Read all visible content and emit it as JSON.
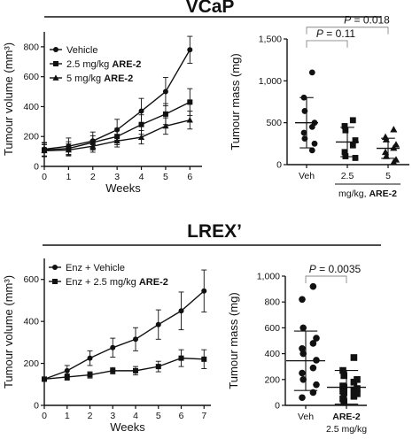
{
  "panels": {
    "vcap": {
      "title": "VCaP"
    },
    "lrex": {
      "title": "LREX’"
    }
  },
  "colors": {
    "ink": "#111111",
    "background": "#ffffff"
  },
  "chart_data": [
    {
      "id": "vcap_volume",
      "type": "line",
      "xlabel": "Weeks",
      "ylabel": "Tumour volume (mm³)",
      "xlim": [
        0,
        6.5
      ],
      "ylim": [
        0,
        900
      ],
      "xticks": [
        0,
        1,
        2,
        3,
        4,
        5,
        6
      ],
      "yticks": [
        0,
        200,
        400,
        600,
        800
      ],
      "legend": "top-left",
      "x": [
        0,
        1,
        2,
        3,
        4,
        5,
        6
      ],
      "series": [
        {
          "name": "Vehicle",
          "name_bold": "",
          "marker": "circle",
          "values": [
            115,
            135,
            170,
            245,
            370,
            500,
            780
          ],
          "errors": [
            45,
            55,
            60,
            70,
            85,
            95,
            90
          ]
        },
        {
          "name": "2.5 mg/kg ",
          "name_bold": "ARE-2",
          "marker": "square",
          "values": [
            110,
            120,
            160,
            200,
            280,
            350,
            430
          ],
          "errors": [
            45,
            45,
            45,
            55,
            65,
            70,
            90
          ]
        },
        {
          "name": "5 mg/kg ",
          "name_bold": "ARE-2",
          "marker": "triangle",
          "values": [
            105,
            110,
            135,
            170,
            195,
            270,
            310
          ],
          "errors": [
            40,
            40,
            40,
            40,
            45,
            55,
            60
          ]
        }
      ]
    },
    {
      "id": "vcap_mass",
      "type": "scatter",
      "ylabel": "Tumour mass (mg)",
      "ylim": [
        0,
        1500
      ],
      "yticks": [
        0,
        500,
        1000,
        1500
      ],
      "ytick_labels": [
        "0",
        "500",
        "1,000",
        "1,500"
      ],
      "categories": [
        "Veh",
        "2.5",
        "5"
      ],
      "category_bold": [
        false,
        false,
        false
      ],
      "group_caption": {
        "text": "mg/kg, ",
        "bold": "ARE-2"
      },
      "groups": [
        {
          "marker": "circle",
          "mean": 500,
          "sd": 300,
          "values": [
            1100,
            800,
            640,
            500,
            450,
            380,
            310,
            250,
            170
          ]
        },
        {
          "marker": "square",
          "mean": 270,
          "sd": 175,
          "values": [
            530,
            460,
            410,
            290,
            230,
            150,
            100,
            80
          ]
        },
        {
          "marker": "triangle",
          "mean": 195,
          "sd": 120,
          "values": [
            420,
            330,
            300,
            240,
            200,
            150,
            100,
            60,
            30
          ]
        }
      ],
      "annotations": [
        {
          "label": "P",
          "value": " = 0.11",
          "from": 0,
          "to": 1,
          "level": 1480
        },
        {
          "label": "P",
          "value": " = 0.018",
          "from": 0,
          "to": 2,
          "level": 1640
        }
      ]
    },
    {
      "id": "lrex_volume",
      "type": "line",
      "xlabel": "Weeks",
      "ylabel": "Tumour volume (mm³)",
      "xlim": [
        0,
        7.3
      ],
      "ylim": [
        0,
        700
      ],
      "xticks": [
        0,
        1,
        2,
        3,
        4,
        5,
        6,
        7
      ],
      "yticks": [
        0,
        200,
        400,
        600
      ],
      "legend": "top-left",
      "x": [
        0,
        1,
        2,
        3,
        4,
        5,
        6,
        7
      ],
      "series": [
        {
          "name": "Enz + Vehicle",
          "name_bold": "",
          "marker": "circle",
          "values": [
            125,
            165,
            225,
            275,
            315,
            385,
            450,
            545
          ],
          "errors": [
            10,
            25,
            35,
            45,
            55,
            70,
            90,
            100
          ]
        },
        {
          "name": "Enz + 2.5 mg/kg ",
          "name_bold": "ARE-2",
          "marker": "square",
          "values": [
            125,
            135,
            145,
            165,
            165,
            185,
            225,
            220
          ],
          "errors": [
            10,
            15,
            15,
            15,
            20,
            25,
            40,
            45
          ]
        }
      ]
    },
    {
      "id": "lrex_mass",
      "type": "scatter",
      "ylabel": "Tumour mass (mg)",
      "ylim": [
        0,
        1000
      ],
      "yticks": [
        0,
        200,
        400,
        600,
        800,
        1000
      ],
      "ytick_labels": [
        "0",
        "200",
        "400",
        "600",
        "800",
        "1,000"
      ],
      "categories": [
        "Veh",
        "ARE-2"
      ],
      "category_bold": [
        false,
        true
      ],
      "category_sub": [
        "",
        "2.5 mg/kg"
      ],
      "groups": [
        {
          "marker": "circle",
          "mean": 345,
          "sd": 230,
          "values": [
            920,
            820,
            600,
            520,
            480,
            440,
            400,
            350,
            290,
            250,
            200,
            160,
            100,
            60
          ]
        },
        {
          "marker": "square",
          "mean": 140,
          "sd": 130,
          "values": [
            370,
            270,
            230,
            200,
            180,
            150,
            140,
            130,
            120,
            110,
            100,
            90,
            70,
            50,
            30
          ]
        }
      ],
      "annotations": [
        {
          "label": "P",
          "value": " = 0.0035",
          "from": 0,
          "to": 1,
          "level": 1000
        }
      ]
    }
  ]
}
